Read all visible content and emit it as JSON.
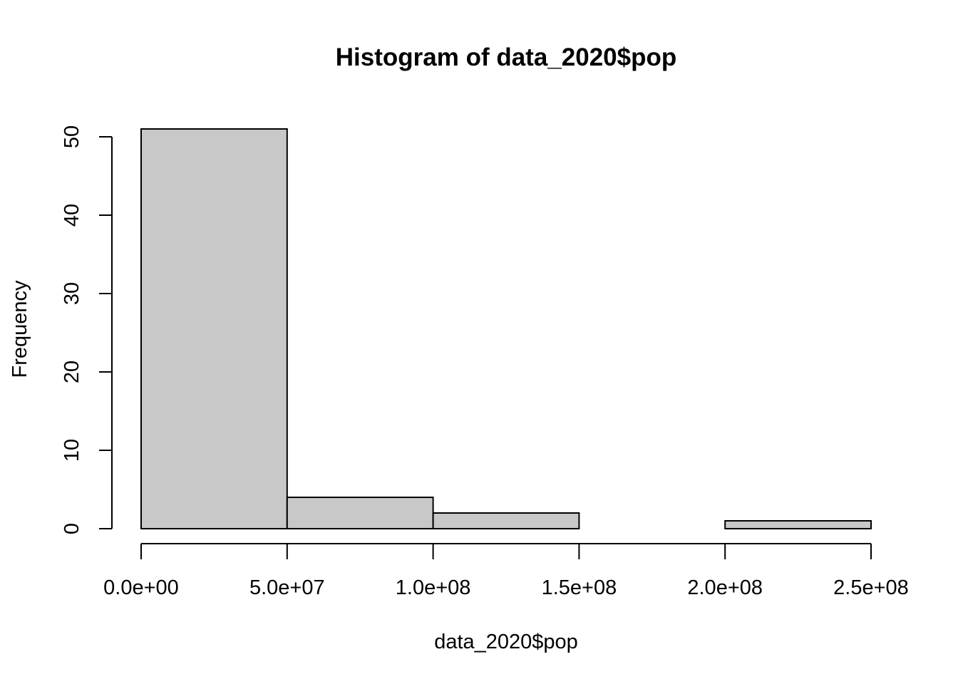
{
  "chart_data": {
    "type": "bar",
    "subtype": "histogram",
    "title": "Histogram of data_2020$pop",
    "xlabel": "data_2020$pop",
    "ylabel": "Frequency",
    "bins": [
      {
        "start": 0,
        "end": 50000000,
        "count": 51
      },
      {
        "start": 50000000,
        "end": 100000000,
        "count": 4
      },
      {
        "start": 100000000,
        "end": 150000000,
        "count": 2
      },
      {
        "start": 150000000,
        "end": 200000000,
        "count": 0
      },
      {
        "start": 200000000,
        "end": 250000000,
        "count": 1
      }
    ],
    "xlim": [
      0,
      250000000
    ],
    "ylim": [
      0,
      51
    ],
    "x_ticks": [
      {
        "value": 0,
        "label": "0.0e+00"
      },
      {
        "value": 50000000,
        "label": "5.0e+07"
      },
      {
        "value": 100000000,
        "label": "1.0e+08"
      },
      {
        "value": 150000000,
        "label": "1.5e+08"
      },
      {
        "value": 200000000,
        "label": "2.0e+08"
      },
      {
        "value": 250000000,
        "label": "2.5e+08"
      }
    ],
    "y_ticks": [
      {
        "value": 0,
        "label": "0"
      },
      {
        "value": 10,
        "label": "10"
      },
      {
        "value": 20,
        "label": "20"
      },
      {
        "value": 30,
        "label": "30"
      },
      {
        "value": 40,
        "label": "40"
      },
      {
        "value": 50,
        "label": "50"
      }
    ],
    "grid": false,
    "legend": "none",
    "colors": {
      "bar_fill": "#c8c8c8",
      "bar_stroke": "#000000",
      "axis": "#000000",
      "text": "#000000"
    }
  }
}
